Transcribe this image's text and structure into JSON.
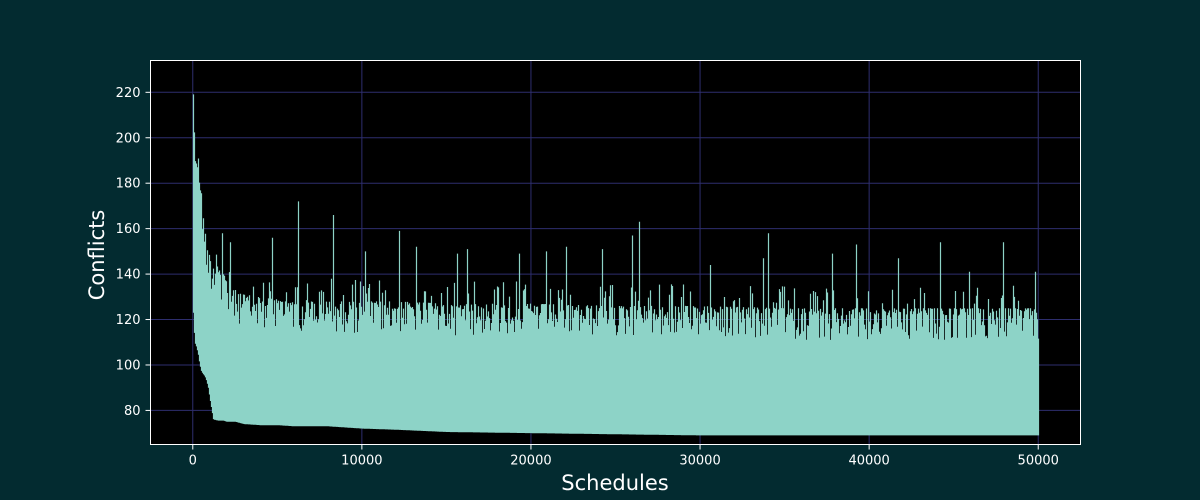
{
  "chart_data": {
    "type": "line",
    "title": "",
    "xlabel": "Schedules",
    "ylabel": "Conflicts",
    "xlim": [
      -2500,
      52500
    ],
    "ylim": [
      65,
      234
    ],
    "xticks": [
      0,
      10000,
      20000,
      30000,
      40000,
      50000
    ],
    "yticks": [
      80,
      100,
      120,
      140,
      160,
      180,
      200,
      220
    ],
    "grid": true,
    "legend": "none",
    "colors": {
      "figure_background": "#032b30",
      "plot_background": "#000000",
      "line": "#8dd3c7",
      "grid": "#2e2e6e",
      "text": "#ffffff"
    },
    "series": [
      {
        "points": 50000,
        "x_range": [
          0,
          50000
        ],
        "envelope_x": [
          0,
          100,
          200,
          300,
          400,
          500,
          600,
          700,
          800,
          900,
          1000,
          1200,
          1500,
          1800,
          2000,
          2500,
          3000,
          4000,
          5000,
          6000,
          8000,
          10000,
          12000,
          15000,
          20000,
          25000,
          30000,
          35000,
          40000,
          45000,
          50000
        ],
        "upper_envelope": [
          229,
          200,
          188,
          200,
          184,
          175,
          165,
          160,
          155,
          150,
          148,
          145,
          143,
          140,
          137,
          135,
          133,
          132,
          131,
          131,
          130,
          130,
          130,
          129,
          129,
          128,
          128,
          127,
          127,
          127,
          127
        ],
        "lower_envelope": [
          125,
          110,
          108,
          105,
          100,
          97,
          96,
          95,
          93,
          90,
          85,
          76,
          75.5,
          75.5,
          75,
          75,
          74,
          73.5,
          73.5,
          73,
          73,
          72,
          71.5,
          70.5,
          70,
          69.5,
          69,
          69,
          69,
          69,
          69
        ],
        "spikes": [
          {
            "x": 6200,
            "y": 172
          },
          {
            "x": 8300,
            "y": 166
          },
          {
            "x": 26400,
            "y": 163
          },
          {
            "x": 12200,
            "y": 159
          },
          {
            "x": 34000,
            "y": 158
          },
          {
            "x": 26000,
            "y": 157
          },
          {
            "x": 1700,
            "y": 158
          },
          {
            "x": 4700,
            "y": 156
          },
          {
            "x": 44200,
            "y": 154
          },
          {
            "x": 47900,
            "y": 154
          },
          {
            "x": 39200,
            "y": 153
          },
          {
            "x": 13200,
            "y": 152
          },
          {
            "x": 16200,
            "y": 151
          },
          {
            "x": 22100,
            "y": 152
          },
          {
            "x": 24200,
            "y": 151
          },
          {
            "x": 10200,
            "y": 150
          },
          {
            "x": 15600,
            "y": 149
          },
          {
            "x": 19300,
            "y": 149
          },
          {
            "x": 20900,
            "y": 150
          },
          {
            "x": 37800,
            "y": 149
          },
          {
            "x": 2200,
            "y": 154
          },
          {
            "x": 33700,
            "y": 147
          },
          {
            "x": 30600,
            "y": 144
          },
          {
            "x": 41700,
            "y": 147
          },
          {
            "x": 45900,
            "y": 141
          },
          {
            "x": 49800,
            "y": 141
          }
        ]
      }
    ]
  }
}
